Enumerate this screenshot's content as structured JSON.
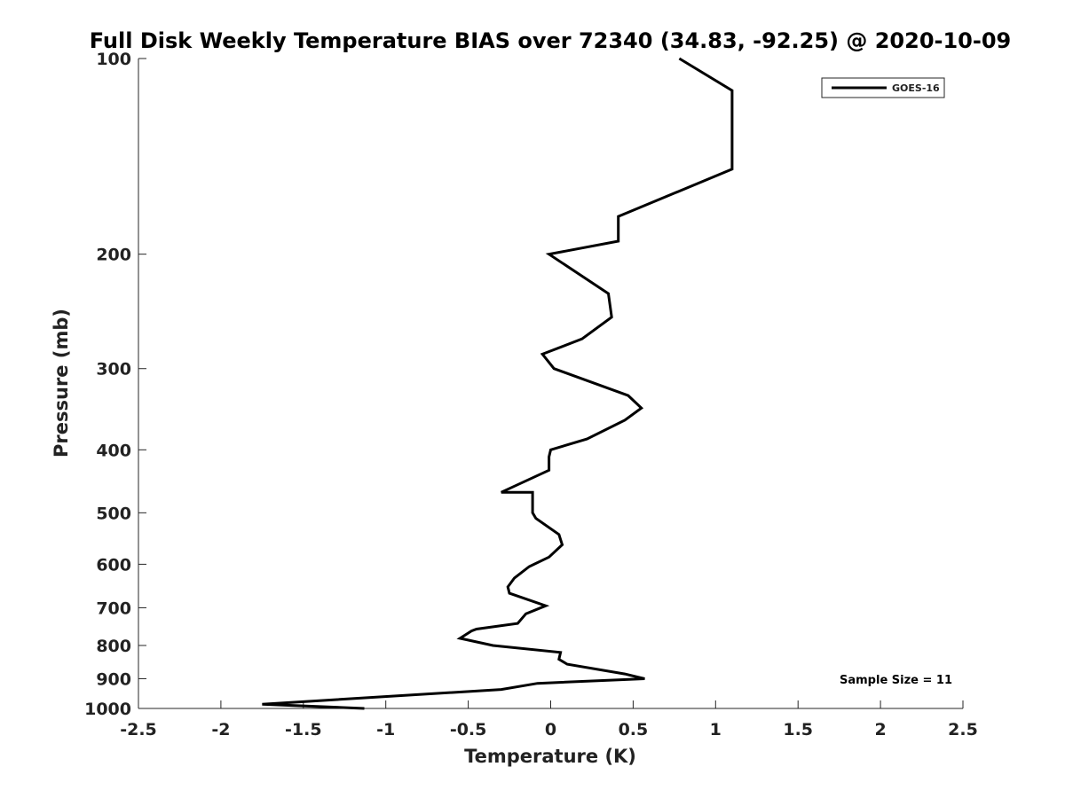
{
  "chart_data": {
    "type": "line",
    "title": "Full Disk Weekly Temperature BIAS over 72340 (34.83, -92.25) @ 2020-10-09",
    "xlabel": "Temperature (K)",
    "ylabel": "Pressure (mb)",
    "xlim": [
      -2.5,
      2.5
    ],
    "ylim": [
      100,
      1000
    ],
    "y_scale": "log",
    "y_reversed": true,
    "x_ticks": [
      "-2.5",
      "-2",
      "-1.5",
      "-1",
      "-0.5",
      "0",
      "0.5",
      "1",
      "1.5",
      "2",
      "2.5"
    ],
    "y_ticks": [
      "100",
      "200",
      "300",
      "400",
      "500",
      "600",
      "700",
      "800",
      "900",
      "1000"
    ],
    "grid": false,
    "legend_position": "top-right",
    "annotation": "Sample Size = 11",
    "series": [
      {
        "name": "GOES-16",
        "color": "#000000",
        "x": [
          0.78,
          1.1,
          1.1,
          1.1,
          0.41,
          0.41,
          0.41,
          0.41,
          -0.01,
          0.35,
          0.37,
          0.19,
          -0.05,
          0.02,
          0.47,
          0.55,
          0.45,
          0.22,
          0.0,
          -0.01,
          -0.01,
          -0.3,
          -0.11,
          -0.11,
          -0.09,
          0.05,
          0.07,
          -0.01,
          -0.13,
          -0.22,
          -0.26,
          -0.25,
          -0.03,
          -0.15,
          -0.2,
          -0.45,
          -0.48,
          -0.55,
          -0.35,
          0.06,
          0.05,
          0.1,
          0.45,
          0.57,
          -0.08,
          -0.3,
          -1.75,
          -1.13
        ],
        "y": [
          100,
          112,
          125,
          148,
          175,
          180,
          186,
          191,
          200,
          230,
          250,
          270,
          285,
          300,
          330,
          345,
          360,
          385,
          400,
          410,
          430,
          465,
          465,
          500,
          510,
          540,
          560,
          585,
          605,
          630,
          650,
          665,
          695,
          715,
          740,
          755,
          760,
          780,
          800,
          820,
          840,
          855,
          885,
          900,
          915,
          935,
          985,
          1000
        ]
      }
    ]
  }
}
